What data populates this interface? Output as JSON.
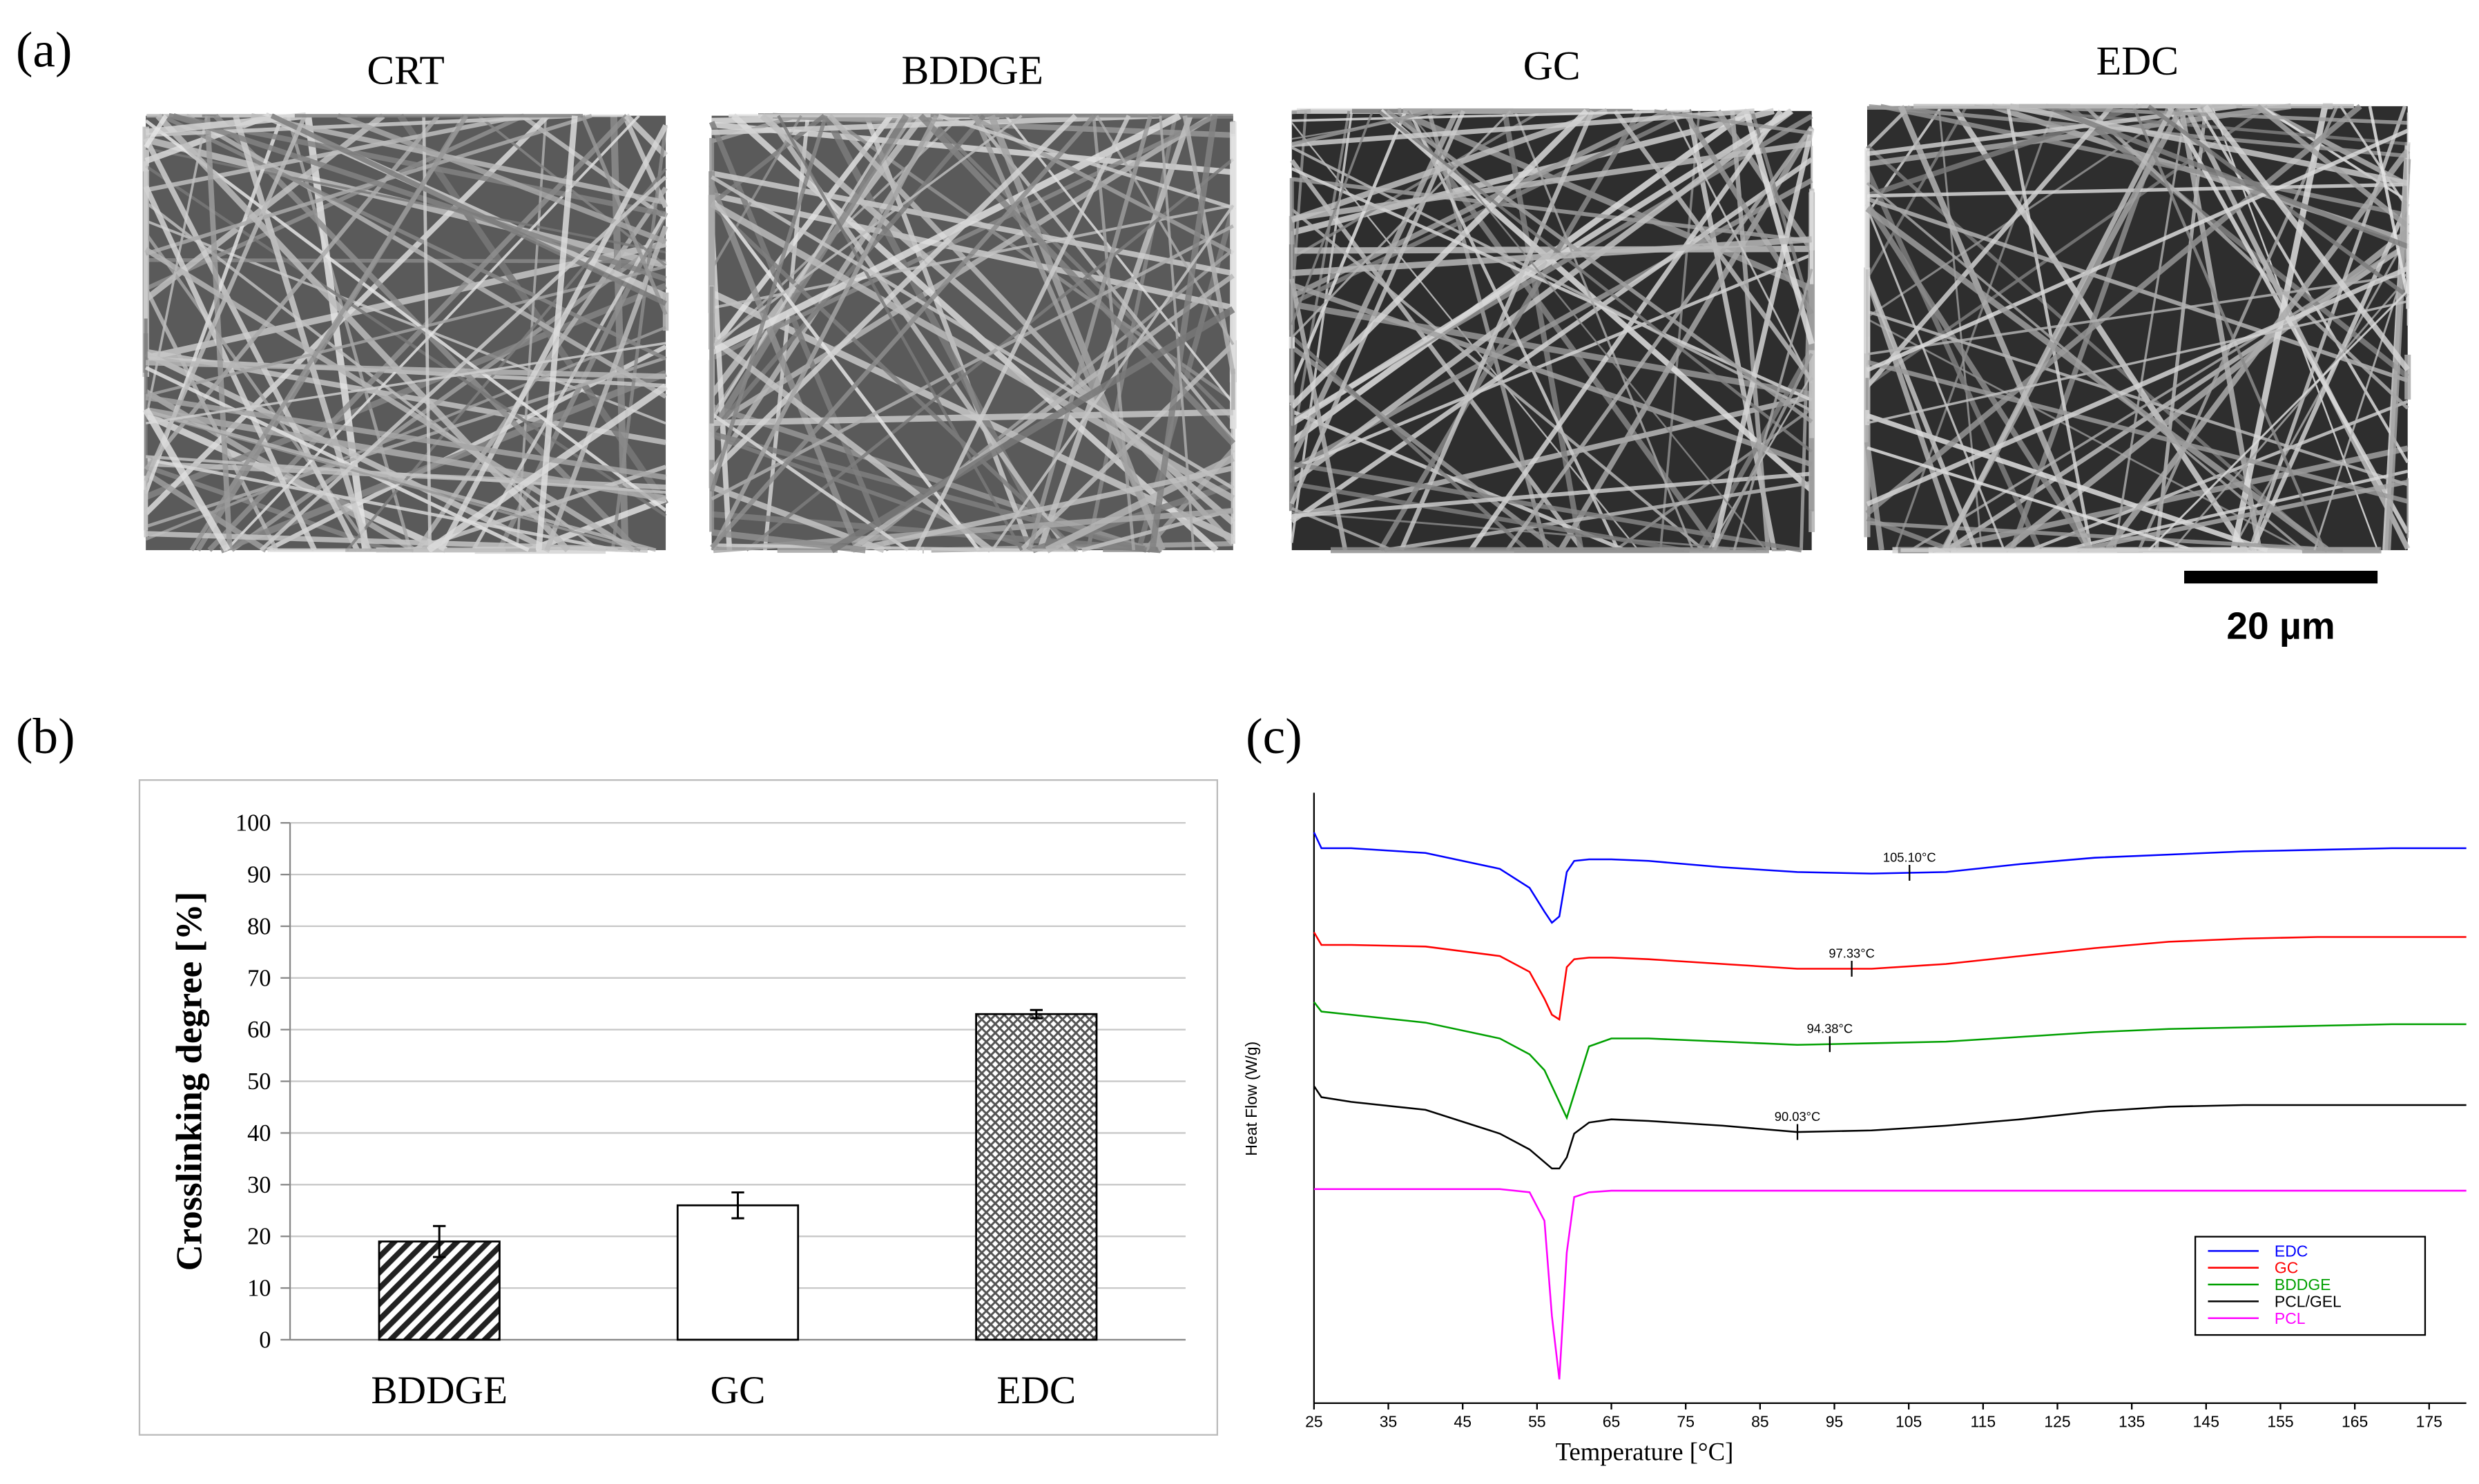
{
  "panel_labels": [
    "(a)",
    "(b)",
    "(c)"
  ],
  "sem_images": {
    "labels": [
      "CRT",
      "BDDGE",
      "GC",
      "EDC"
    ],
    "scale_bar": "20 µm"
  },
  "chart_data": [
    {
      "type": "bar",
      "ylabel": "Crosslinking degree [%]",
      "categories": [
        "BDDGE",
        "GC",
        "EDC"
      ],
      "values": [
        19,
        26,
        63
      ],
      "errors": [
        3,
        2.5,
        0.8
      ],
      "patterns": [
        "diagonal-hatch",
        "none",
        "cross-hatch"
      ],
      "color": "#000000",
      "ylim": [
        0,
        100
      ],
      "yticks": [
        0,
        10,
        20,
        30,
        40,
        50,
        60,
        70,
        80,
        90,
        100
      ],
      "grid": true
    },
    {
      "type": "line",
      "xlabel": "Temperature [°C]",
      "ylabel": "Heat Flow (W/g)",
      "x": [
        25,
        26,
        30,
        40,
        50,
        54,
        56,
        57,
        58,
        59,
        60,
        62,
        65,
        70,
        80,
        90,
        100,
        110,
        120,
        130,
        140,
        150,
        160,
        170,
        180
      ],
      "series": [
        {
          "name": "EDC",
          "color": "#0000ff",
          "values": [
            360,
            350,
            350,
            347,
            337,
            325,
            310,
            303,
            307,
            335,
            342,
            343,
            343,
            342,
            338,
            335,
            334,
            335,
            340,
            344,
            346,
            348,
            349,
            350,
            350
          ]
        },
        {
          "name": "GC",
          "color": "#ff0000",
          "values": [
            297,
            289,
            289,
            288,
            282,
            272,
            255,
            245,
            242,
            275,
            280,
            281,
            281,
            280,
            277,
            274,
            274,
            277,
            282,
            287,
            291,
            293,
            294,
            294,
            294
          ]
        },
        {
          "name": "BDDGE",
          "color": "#00a000",
          "values": [
            253,
            247,
            245,
            240,
            230,
            220,
            210,
            200,
            190,
            180,
            195,
            225,
            230,
            230,
            228,
            226,
            227,
            228,
            231,
            234,
            236,
            237,
            238,
            239,
            239
          ]
        },
        {
          "name": "PCL/GEL",
          "color": "#000000",
          "values": [
            200,
            193,
            190,
            185,
            170,
            160,
            152,
            148,
            148,
            155,
            170,
            177,
            179,
            178,
            175,
            171,
            172,
            175,
            179,
            184,
            187,
            188,
            188,
            188,
            188
          ]
        },
        {
          "name": "PCL",
          "color": "#ff00ff",
          "values": [
            135,
            135,
            135,
            135,
            135,
            133,
            115,
            55,
            15,
            95,
            130,
            133,
            134,
            134,
            134,
            134,
            134,
            134,
            134,
            134,
            134,
            134,
            134,
            134,
            134
          ]
        }
      ],
      "annotations": [
        {
          "x": 105.1,
          "series": 0,
          "text": "105.10°C"
        },
        {
          "x": 97.33,
          "series": 1,
          "text": "97.33°C"
        },
        {
          "x": 94.38,
          "series": 2,
          "text": "94.38°C"
        },
        {
          "x": 90.03,
          "series": 3,
          "text": "90.03°C"
        }
      ],
      "xlim": [
        25,
        180
      ],
      "xticks": [
        25,
        35,
        45,
        55,
        65,
        75,
        85,
        95,
        105,
        115,
        125,
        135,
        145,
        155,
        165,
        175
      ],
      "ylim": [
        0,
        385
      ],
      "legend": "lower right"
    }
  ]
}
